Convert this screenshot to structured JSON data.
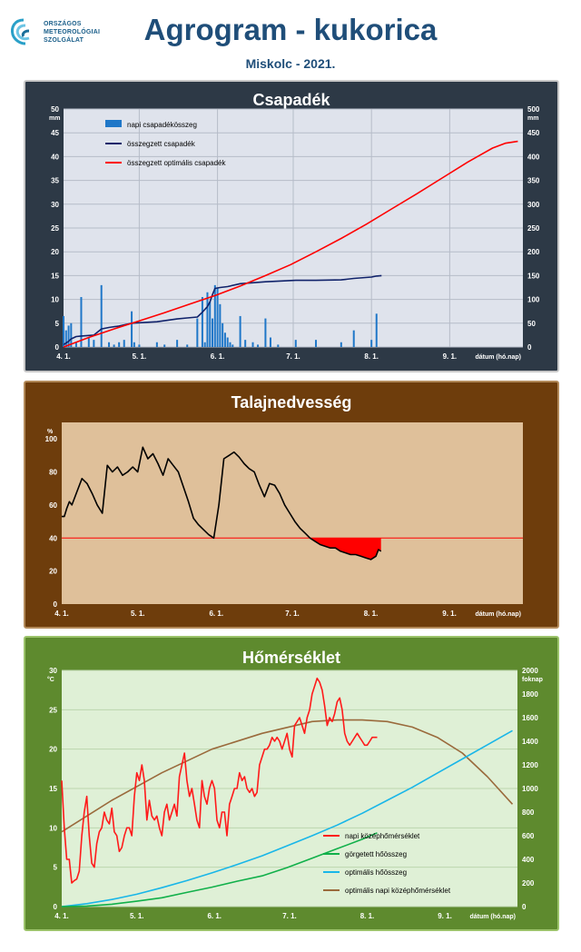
{
  "page": {
    "logo_lines": [
      "ORSZÁGOS",
      "METEOROLÓGIAI",
      "SZOLGÁLAT"
    ],
    "title": "Agrogram - kukorica",
    "subtitle": "Miskolc - 2021."
  },
  "colors": {
    "precip_bar": "#1f77c8",
    "precip_cum": "#10226a",
    "precip_opt": "#ff0000",
    "soil_line": "#000000",
    "soil_threshold": "#ff0000",
    "temp_daily": "#ff1a1a",
    "temp_rolling": "#11b04a",
    "temp_opt_sum": "#19b6e8",
    "temp_opt_daily": "#9a6a3c"
  },
  "chart_data": [
    {
      "type": "bar",
      "title": "Csapadék",
      "xlabel": "dátum (hó.nap)",
      "ylabel": "mm",
      "y2label": "mm",
      "x_ticks": [
        "4. 1.",
        "5. 1.",
        "6. 1.",
        "7. 1.",
        "8. 1.",
        "9. 1."
      ],
      "x_range": [
        0,
        182
      ],
      "ylim": [
        0,
        50
      ],
      "y_ticks": [
        0,
        5,
        10,
        15,
        20,
        25,
        30,
        35,
        40,
        45,
        50
      ],
      "y2lim": [
        0,
        500
      ],
      "y2_ticks": [
        0,
        50,
        100,
        150,
        200,
        250,
        300,
        350,
        400,
        450,
        500
      ],
      "legend_position": "top-left",
      "series": [
        {
          "name": "napi csapadékösszeg",
          "kind": "bar",
          "axis": "left",
          "x": [
            0,
            1,
            2,
            3,
            5,
            7,
            10,
            12,
            15,
            18,
            20,
            22,
            24,
            27,
            28,
            30,
            37,
            40,
            45,
            49,
            53,
            55,
            56,
            57,
            58,
            59,
            60,
            61,
            62,
            63,
            64,
            65,
            66,
            67,
            70,
            72,
            75,
            77,
            80,
            82,
            85,
            92,
            100,
            110,
            115,
            122,
            124
          ],
          "y": [
            6.5,
            3.5,
            4.5,
            5.0,
            1.0,
            10.5,
            2.0,
            1.5,
            13.0,
            1.0,
            0.5,
            1.0,
            1.5,
            7.5,
            1.0,
            0.5,
            1.0,
            0.5,
            1.5,
            0.5,
            6.0,
            10.5,
            1.0,
            11.5,
            9.5,
            6.0,
            13.0,
            12.5,
            9.0,
            5.0,
            3.0,
            2.0,
            1.0,
            0.5,
            6.5,
            1.5,
            1.0,
            0.5,
            6.0,
            2.0,
            0.5,
            1.5,
            1.5,
            1.0,
            3.5,
            1.5,
            7.0
          ]
        },
        {
          "name": "összegzett csapadék",
          "kind": "line",
          "axis": "right",
          "x": [
            0,
            2,
            3,
            5,
            7,
            12,
            15,
            18,
            22,
            27,
            30,
            37,
            45,
            49,
            53,
            55,
            57,
            58,
            59,
            60,
            62,
            65,
            70,
            80,
            92,
            100,
            110,
            115,
            122,
            124,
            126
          ],
          "y": [
            5,
            12,
            17,
            22,
            23,
            25,
            38,
            41,
            44,
            50,
            51,
            53,
            59,
            61,
            63,
            73,
            85,
            95,
            110,
            123,
            125,
            127,
            133,
            137,
            140,
            140,
            141,
            144,
            147,
            149,
            150
          ]
        },
        {
          "name": "összegzett optimális  csapadék",
          "kind": "line",
          "axis": "right",
          "x": [
            0,
            10,
            20,
            30,
            40,
            50,
            60,
            70,
            80,
            90,
            100,
            110,
            120,
            130,
            140,
            150,
            160,
            165,
            170,
            175,
            180
          ],
          "y": [
            0,
            20,
            38,
            55,
            72,
            90,
            108,
            128,
            150,
            173,
            200,
            228,
            258,
            290,
            322,
            355,
            388,
            403,
            418,
            428,
            432
          ]
        }
      ]
    },
    {
      "type": "line",
      "title": "Talajnedvesség",
      "xlabel": "dátum (hó.nap)",
      "ylabel": "%",
      "x_ticks": [
        "4. 1.",
        "5. 1.",
        "6. 1.",
        "7. 1.",
        "8. 1.",
        "9. 1."
      ],
      "x_range": [
        0,
        182
      ],
      "ylim": [
        0,
        110
      ],
      "y_ticks": [
        0,
        20,
        40,
        60,
        80,
        100
      ],
      "threshold": 40,
      "series": [
        {
          "name": "talajnedvesség",
          "kind": "line",
          "x": [
            0,
            1,
            2,
            3,
            4,
            6,
            8,
            10,
            12,
            14,
            16,
            18,
            20,
            22,
            24,
            26,
            28,
            30,
            32,
            34,
            36,
            38,
            40,
            42,
            44,
            46,
            48,
            50,
            52,
            54,
            56,
            58,
            60,
            62,
            64,
            66,
            68,
            70,
            72,
            74,
            76,
            78,
            80,
            82,
            84,
            86,
            88,
            90,
            92,
            94,
            96,
            98,
            100,
            102,
            104,
            106,
            108,
            110,
            112,
            114,
            116,
            118,
            120,
            122,
            124,
            125,
            126
          ],
          "y": [
            53,
            53,
            58,
            62,
            60,
            68,
            76,
            73,
            67,
            60,
            55,
            84,
            80,
            83,
            78,
            80,
            83,
            80,
            95,
            88,
            91,
            85,
            78,
            88,
            84,
            80,
            71,
            62,
            52,
            48,
            45,
            42,
            40,
            60,
            88,
            90,
            92,
            89,
            85,
            82,
            80,
            72,
            65,
            73,
            72,
            67,
            60,
            55,
            50,
            46,
            43,
            40,
            38,
            36,
            35,
            34,
            34,
            32,
            31,
            30,
            30,
            29,
            28,
            27,
            29,
            33,
            32
          ]
        }
      ]
    },
    {
      "type": "line",
      "title": "Hőmérséklet",
      "xlabel": "dátum (hó.nap)",
      "ylabel": "°C",
      "y2label": "foknap",
      "x_ticks": [
        "4. 1.",
        "5. 1.",
        "6. 1.",
        "7. 1.",
        "8. 1.",
        "9. 1."
      ],
      "x_range": [
        0,
        182
      ],
      "ylim": [
        0,
        30
      ],
      "y_ticks": [
        0,
        5,
        10,
        15,
        20,
        25,
        30
      ],
      "y2lim": [
        0,
        2000
      ],
      "y2_ticks": [
        0,
        200,
        400,
        600,
        800,
        1000,
        1200,
        1400,
        1600,
        1800,
        2000
      ],
      "legend_position": "bottom-right",
      "series": [
        {
          "name": "napi középhőmérséklet",
          "kind": "line",
          "axis": "left",
          "x": [
            0,
            1,
            2,
            3,
            4,
            5,
            6,
            7,
            8,
            9,
            10,
            11,
            12,
            13,
            14,
            15,
            16,
            17,
            18,
            19,
            20,
            21,
            22,
            23,
            24,
            25,
            26,
            27,
            28,
            29,
            30,
            31,
            32,
            33,
            34,
            35,
            36,
            37,
            38,
            39,
            40,
            41,
            42,
            43,
            44,
            45,
            46,
            47,
            48,
            49,
            50,
            51,
            52,
            53,
            54,
            55,
            56,
            57,
            58,
            59,
            60,
            61,
            62,
            63,
            64,
            65,
            66,
            67,
            68,
            69,
            70,
            71,
            72,
            73,
            74,
            75,
            76,
            77,
            78,
            79,
            80,
            81,
            82,
            83,
            84,
            85,
            86,
            87,
            88,
            89,
            90,
            91,
            92,
            93,
            94,
            95,
            96,
            97,
            98,
            99,
            100,
            101,
            102,
            103,
            104,
            105,
            106,
            107,
            108,
            109,
            110,
            111,
            112,
            113,
            114,
            115,
            116,
            117,
            118,
            119,
            120,
            121,
            122,
            123,
            124,
            125,
            126
          ],
          "y": [
            16,
            10,
            6,
            6,
            3,
            3.3,
            3.5,
            4.5,
            9,
            12,
            14,
            9,
            5.5,
            5,
            8,
            9.5,
            10,
            12,
            11,
            10.5,
            12.5,
            9.5,
            9,
            7,
            7.5,
            9,
            10,
            10,
            9,
            14,
            17,
            16,
            18,
            16,
            11,
            13.5,
            11.5,
            11,
            11.5,
            10,
            9,
            12,
            13,
            11,
            12,
            13,
            11.5,
            16.5,
            18,
            19.5,
            16,
            14,
            15,
            13,
            11,
            10,
            16,
            14,
            13,
            15,
            16,
            15,
            11,
            10,
            12,
            12,
            9,
            13,
            14,
            15,
            15,
            17,
            16,
            16.5,
            15,
            14.5,
            15,
            14,
            14.5,
            18,
            19,
            20,
            20,
            20.5,
            21.5,
            21,
            21.5,
            21,
            20,
            21,
            22,
            20,
            19,
            23,
            23.5,
            24,
            23,
            22,
            24,
            25,
            27,
            28,
            29,
            28.5,
            27.5,
            25.5,
            23,
            24,
            23.5,
            24.5,
            26,
            26.5,
            25,
            22,
            21,
            20.5,
            21,
            21.5,
            22,
            21.5,
            21,
            20.5,
            20.5,
            21,
            21.5,
            21.5,
            21.5
          ],
          "visible_until": 126
        },
        {
          "name": "görgetett hőösszeg",
          "kind": "line",
          "axis": "right",
          "x": [
            0,
            10,
            20,
            30,
            40,
            50,
            60,
            70,
            80,
            90,
            100,
            110,
            120,
            126
          ],
          "y": [
            0,
            5,
            20,
            45,
            75,
            120,
            165,
            215,
            260,
            330,
            410,
            490,
            570,
            625
          ]
        },
        {
          "name": "optimális hőösszeg",
          "kind": "line",
          "axis": "right",
          "x": [
            0,
            10,
            20,
            30,
            40,
            50,
            60,
            70,
            80,
            90,
            100,
            110,
            120,
            130,
            140,
            150,
            160,
            170,
            180
          ],
          "y": [
            0,
            25,
            60,
            105,
            160,
            220,
            285,
            355,
            430,
            515,
            600,
            690,
            790,
            900,
            1010,
            1130,
            1250,
            1370,
            1490
          ]
        },
        {
          "name": "optimális napi középhőmérséklet",
          "kind": "line",
          "axis": "left",
          "x": [
            0,
            20,
            40,
            60,
            80,
            100,
            110,
            120,
            130,
            140,
            150,
            160,
            170,
            180
          ],
          "y": [
            9.5,
            13.5,
            17,
            20,
            22,
            23.5,
            23.7,
            23.7,
            23.5,
            22.8,
            21.5,
            19.5,
            16.5,
            13
          ]
        }
      ]
    }
  ]
}
